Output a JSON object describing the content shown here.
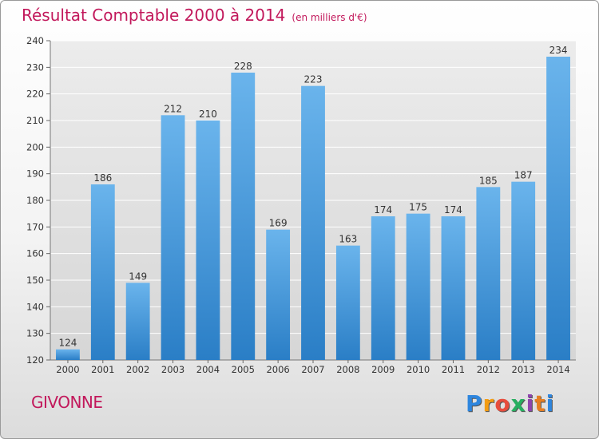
{
  "header": {
    "title": "Résultat Comptable 2000 à 2014",
    "subtitle": "(en milliers d'€)"
  },
  "footer": {
    "city": "GIVONNE",
    "logo": [
      "P",
      "r",
      "o",
      "x",
      "i",
      "t",
      "i"
    ]
  },
  "colors": {
    "title": "#c2185b",
    "bar_top": "#6ab4ec",
    "bar_bottom": "#2a7ec6",
    "grid": "#ffffff",
    "plot_bg": "#dedede"
  },
  "chart_data": {
    "type": "bar",
    "title": "Résultat Comptable 2000 à 2014",
    "subtitle": "(en milliers d'€)",
    "xlabel": "",
    "ylabel": "",
    "categories": [
      "2000",
      "2001",
      "2002",
      "2003",
      "2004",
      "2005",
      "2006",
      "2007",
      "2008",
      "2009",
      "2010",
      "2011",
      "2012",
      "2013",
      "2014"
    ],
    "values": [
      124,
      186,
      149,
      212,
      210,
      228,
      169,
      223,
      163,
      174,
      175,
      174,
      185,
      187,
      234
    ],
    "ylim": [
      120,
      240
    ],
    "yticks": [
      120,
      130,
      140,
      150,
      160,
      170,
      180,
      190,
      200,
      210,
      220,
      230,
      240
    ],
    "grid": true,
    "data_labels": true
  }
}
